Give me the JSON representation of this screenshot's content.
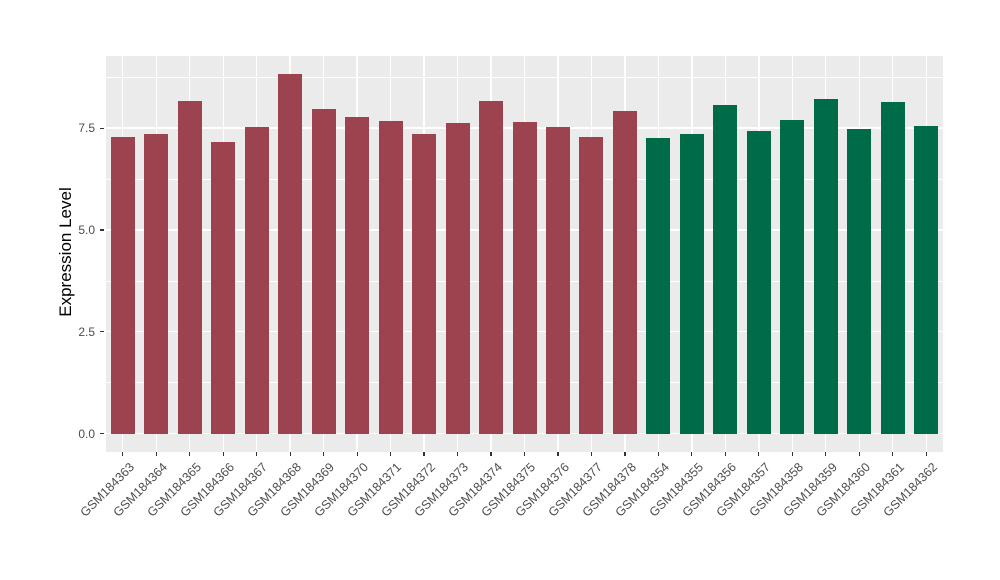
{
  "chart_data": {
    "type": "bar",
    "title": "",
    "xlabel": "",
    "ylabel": "Expression Level",
    "ylim": [
      -0.45,
      9.27
    ],
    "yticks": [
      0.0,
      2.5,
      5.0,
      7.5
    ],
    "ytick_labels": [
      "0.0",
      "2.5",
      "5.0",
      "7.5"
    ],
    "yminor_gridlines": [
      1.25,
      3.75,
      6.25,
      8.75
    ],
    "grid": "major-and-minor-white-on-gray",
    "legend_position": "none",
    "bars": [
      {
        "label": "GSM184363",
        "value": 7.28,
        "group": "maroon"
      },
      {
        "label": "GSM184364",
        "value": 7.35,
        "group": "maroon"
      },
      {
        "label": "GSM184365",
        "value": 8.16,
        "group": "maroon"
      },
      {
        "label": "GSM184366",
        "value": 7.16,
        "group": "maroon"
      },
      {
        "label": "GSM184367",
        "value": 7.52,
        "group": "maroon"
      },
      {
        "label": "GSM184368",
        "value": 8.82,
        "group": "maroon"
      },
      {
        "label": "GSM184369",
        "value": 7.97,
        "group": "maroon"
      },
      {
        "label": "GSM184370",
        "value": 7.77,
        "group": "maroon"
      },
      {
        "label": "GSM184371",
        "value": 7.67,
        "group": "maroon"
      },
      {
        "label": "GSM184372",
        "value": 7.35,
        "group": "maroon"
      },
      {
        "label": "GSM184373",
        "value": 7.62,
        "group": "maroon"
      },
      {
        "label": "GSM184374",
        "value": 8.16,
        "group": "maroon"
      },
      {
        "label": "GSM184375",
        "value": 7.65,
        "group": "maroon"
      },
      {
        "label": "GSM184376",
        "value": 7.52,
        "group": "maroon"
      },
      {
        "label": "GSM184377",
        "value": 7.28,
        "group": "maroon"
      },
      {
        "label": "GSM184378",
        "value": 7.92,
        "group": "maroon"
      },
      {
        "label": "GSM184354",
        "value": 7.25,
        "group": "green"
      },
      {
        "label": "GSM184355",
        "value": 7.35,
        "group": "green"
      },
      {
        "label": "GSM184356",
        "value": 8.06,
        "group": "green"
      },
      {
        "label": "GSM184357",
        "value": 7.43,
        "group": "green"
      },
      {
        "label": "GSM184358",
        "value": 7.7,
        "group": "green"
      },
      {
        "label": "GSM184359",
        "value": 8.21,
        "group": "green"
      },
      {
        "label": "GSM184360",
        "value": 7.48,
        "group": "green"
      },
      {
        "label": "GSM184361",
        "value": 8.14,
        "group": "green"
      },
      {
        "label": "GSM184362",
        "value": 7.55,
        "group": "green"
      }
    ],
    "group_colors": {
      "maroon": "#9D4350",
      "green": "#006B48"
    },
    "colors": {
      "panel_background": "#EBEBEB",
      "gridline": "#FFFFFF",
      "axis_text": "#4D4D4D",
      "axis_title": "#000000",
      "tick_mark": "#333333"
    }
  }
}
